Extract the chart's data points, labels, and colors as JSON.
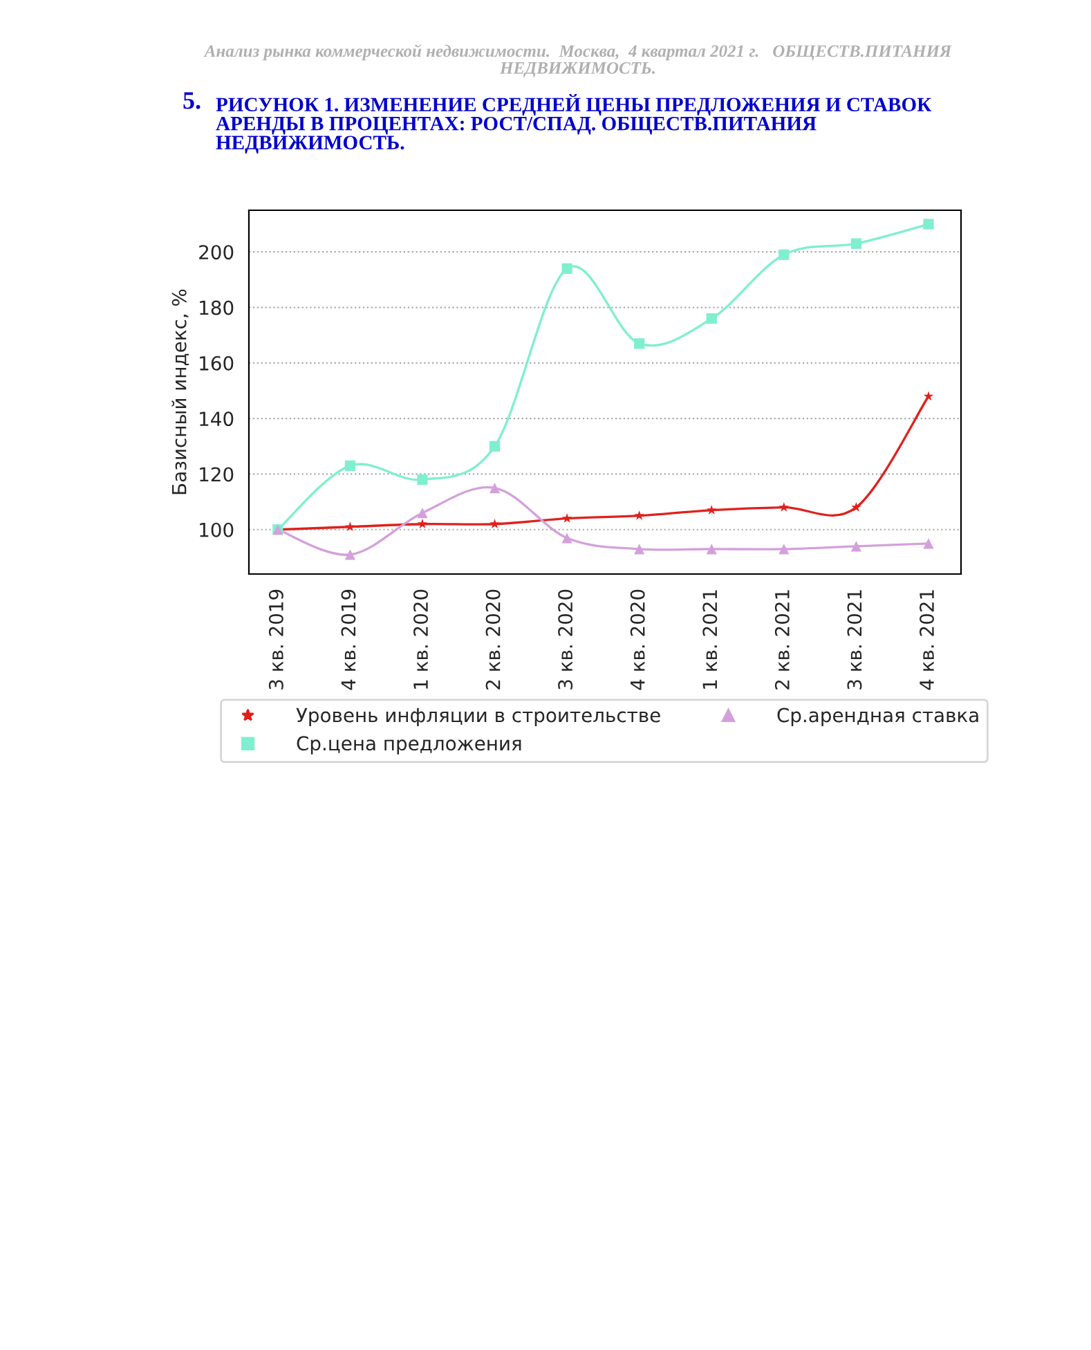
{
  "chart_data": {
    "type": "line",
    "title": "РИСУНОК 1. ИЗМЕНЕНИЕ СРЕДНЕЙ ЦЕНЫ ПРЕДЛОЖЕНИЯ И СТАВОК\nАРЕНДЫ В ПРОЦЕНТАХ: РОСТ/СПАД. ОБЩЕСТВ.ПИТАНИЯ\nНЕДВИЖИМОСТЬ.",
    "annotations": [
      "Анализ рынка коммерческой недвижимости.  Москва,  4 квартал 2021 г.   ОБЩЕСТВ.ПИТАНИЯ\nНЕДВИЖИМОСТЬ.",
      "5."
    ],
    "ylabel": "Базисный индекс, %",
    "categories": [
      "3 кв. 2019",
      "4 кв. 2019",
      "1 кв. 2020",
      "2 кв. 2020",
      "3 кв. 2020",
      "4 кв. 2020",
      "1 кв. 2021",
      "2 кв. 2021",
      "3 кв. 2021",
      "4 кв. 2021"
    ],
    "series": [
      {
        "name": "Уровень инфляции в строительстве",
        "color": "#e0201c",
        "marker": "star",
        "values": [
          100,
          101,
          102,
          102,
          104,
          105,
          107,
          108,
          108,
          148
        ]
      },
      {
        "name": "Ср.цена предложения",
        "color": "#7fefcf",
        "marker": "square",
        "values": [
          100,
          123,
          118,
          130,
          194,
          167,
          176,
          199,
          203,
          210
        ]
      },
      {
        "name": "Ср.арендная ставка",
        "color": "#d4a0dc",
        "marker": "triangle",
        "values": [
          100,
          91,
          106,
          115,
          97,
          93,
          93,
          93,
          94,
          95
        ]
      }
    ],
    "ylim": [
      84,
      215
    ],
    "yticks": [
      100,
      120,
      140,
      160,
      180,
      200
    ],
    "grid": "y",
    "legend": "bottom"
  }
}
